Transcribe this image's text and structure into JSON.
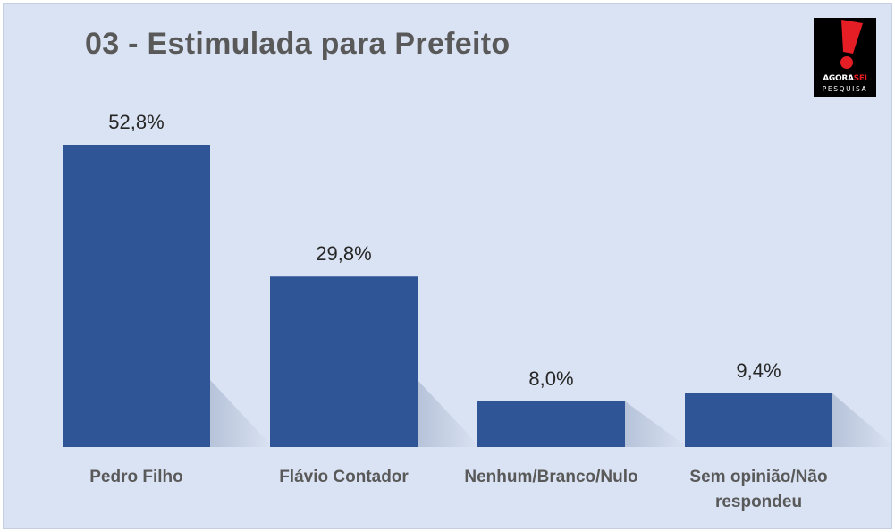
{
  "chart_data": {
    "type": "bar",
    "title": "03 - Estimulada para Prefeito",
    "categories": [
      "Pedro Filho",
      "Flávio Contador",
      "Nenhum/Branco/Nulo",
      "Sem opinião/Não respondeu"
    ],
    "category_lines": [
      [
        "Pedro Filho"
      ],
      [
        "Flávio Contador"
      ],
      [
        "Nenhum/Branco/Nulo"
      ],
      [
        "Sem opinião/Não",
        "respondeu"
      ]
    ],
    "values": [
      52.8,
      29.8,
      8.0,
      9.4
    ],
    "value_labels": [
      "52,8%",
      "29,8%",
      "8,0%",
      "9,4%"
    ],
    "unit": "%",
    "ylim": [
      0,
      60
    ],
    "grid": false,
    "legend": "none",
    "bar_color": "#2f5597",
    "background_color": "#dae3f3"
  },
  "logo": {
    "name_part1": "AGORA",
    "name_part2": "SEI",
    "subtitle": "PESQUISA",
    "accent_color": "#e51d24"
  }
}
